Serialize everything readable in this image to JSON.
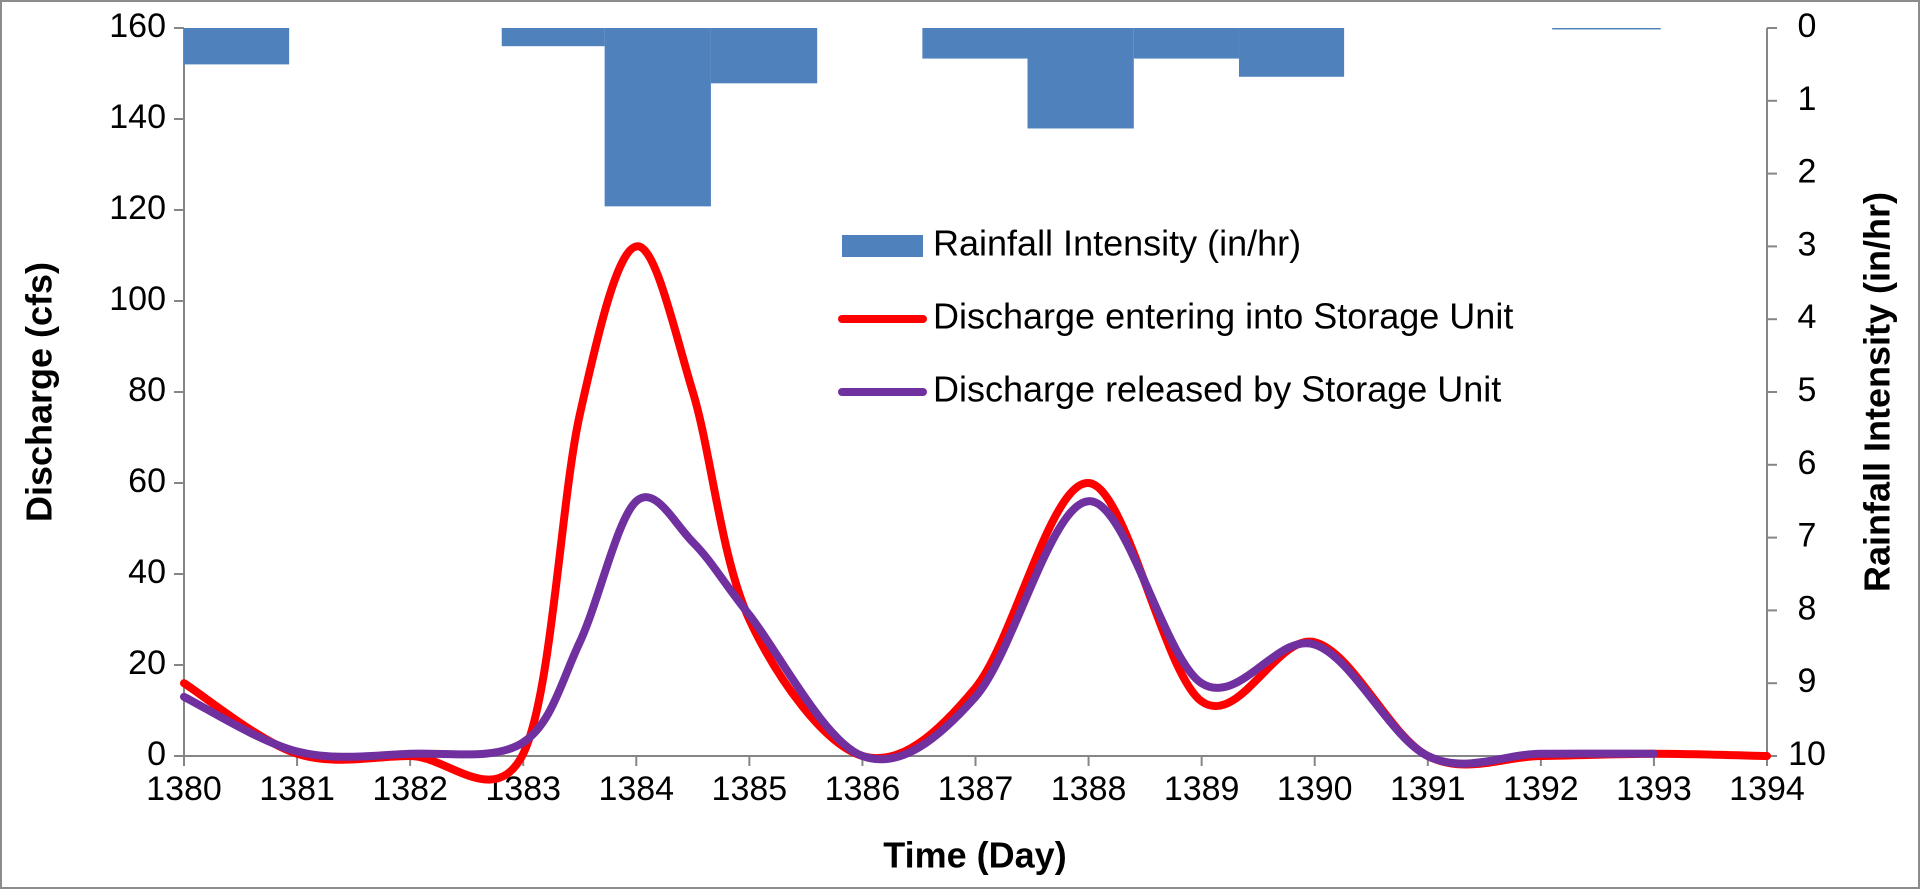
{
  "chart_data": {
    "type": "combo",
    "x_label": "Time (Day)",
    "y_label": "Discharge (cfs)",
    "y2_label": "Rainfall Intensity (in/hr)",
    "xlim": [
      1380,
      1394
    ],
    "xticks": [
      1380,
      1381,
      1382,
      1383,
      1384,
      1385,
      1386,
      1387,
      1388,
      1389,
      1390,
      1391,
      1392,
      1393,
      1394
    ],
    "ylim": [
      0,
      160
    ],
    "yticks": [
      0,
      20,
      40,
      60,
      80,
      100,
      120,
      140,
      160
    ],
    "y2lim": [
      10,
      0
    ],
    "y2ticks": [
      0,
      1,
      2,
      3,
      4,
      5,
      6,
      7,
      8,
      9,
      10
    ],
    "series": [
      {
        "name": "Rainfall Intensity (in/hr)",
        "type": "bar",
        "axis": "y2",
        "color": "#4f81bd",
        "x_start": [
          1380,
          1382.81,
          1383.72,
          1384.66,
          1386.53,
          1387.46,
          1388.4,
          1389.33,
          1392.1
        ],
        "x_end": [
          1380.93,
          1383.72,
          1384.66,
          1385.6,
          1387.46,
          1388.4,
          1389.33,
          1390.26,
          1393.06
        ],
        "values": [
          0.5,
          0.25,
          2.45,
          0.76,
          0.42,
          1.38,
          0.42,
          0.67,
          0.02
        ]
      },
      {
        "name": "Discharge entering into Storage Unit",
        "type": "line",
        "axis": "y",
        "color": "#ff0000",
        "x": [
          1380,
          1381,
          1382,
          1383,
          1383.5,
          1384,
          1384.5,
          1385,
          1386,
          1387,
          1388,
          1389,
          1390,
          1391,
          1392,
          1393,
          1394
        ],
        "values": [
          16,
          0.5,
          0,
          0.5,
          75,
          112,
          80,
          30,
          0,
          15,
          60,
          12,
          25,
          0,
          0,
          0.5,
          0
        ]
      },
      {
        "name": "Discharge released by Storage Unit",
        "type": "line",
        "axis": "y",
        "color": "#7030a0",
        "x": [
          1380,
          1381,
          1382,
          1383,
          1383.5,
          1384,
          1384.5,
          1385,
          1386,
          1387,
          1388,
          1389,
          1390,
          1391,
          1392,
          1393
        ],
        "values": [
          13,
          1,
          0.5,
          3,
          25,
          56,
          47,
          31,
          0,
          13,
          56,
          16,
          24.5,
          0,
          0.5,
          0.5
        ]
      }
    ]
  }
}
